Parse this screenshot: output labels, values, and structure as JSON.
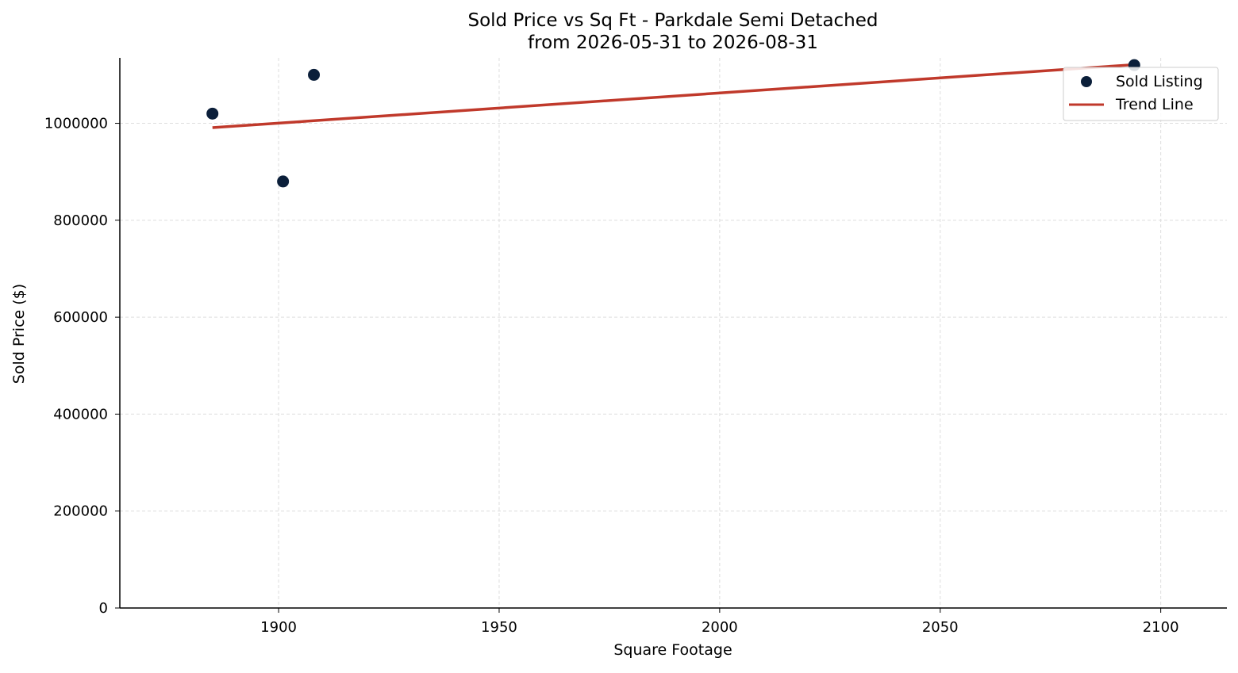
{
  "chart_data": {
    "type": "scatter",
    "title": "Sold Price vs Sq Ft - Parkdale Semi Detached",
    "subtitle": "from 2026-05-31 to 2026-08-31",
    "xlabel": "Square Footage",
    "ylabel": "Sold Price ($)",
    "xlim": [
      1864,
      2115
    ],
    "ylim": [
      0,
      1135000
    ],
    "xticks": [
      1900,
      1950,
      2000,
      2050,
      2100
    ],
    "yticks": [
      0,
      200000,
      400000,
      600000,
      800000,
      1000000
    ],
    "grid": true,
    "legend_position": "top-right",
    "series": [
      {
        "name": "Sold Listing",
        "kind": "scatter",
        "color": "#0b1f3a",
        "points": [
          {
            "x": 1885,
            "y": 1020000
          },
          {
            "x": 1901,
            "y": 880000
          },
          {
            "x": 1908,
            "y": 1100000
          },
          {
            "x": 2094,
            "y": 1120000
          }
        ]
      },
      {
        "name": "Trend Line",
        "kind": "line",
        "color": "#c0392b",
        "points": [
          {
            "x": 1885,
            "y": 991000
          },
          {
            "x": 2094,
            "y": 1121000
          }
        ]
      }
    ]
  }
}
